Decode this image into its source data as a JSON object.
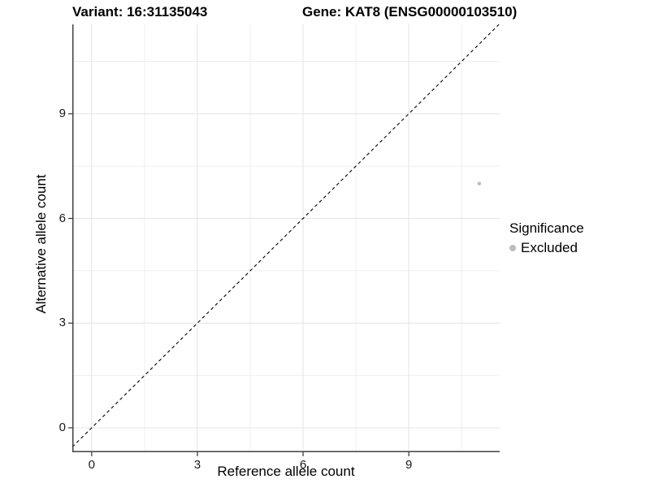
{
  "titles": {
    "left": "Variant: 16:31135043",
    "right": "Gene: KAT8 (ENSG00000103510)"
  },
  "chart_data": {
    "type": "scatter",
    "xlabel": "Reference allele count",
    "ylabel": "Alternative allele count",
    "xlim": [
      -0.55,
      11.58
    ],
    "ylim": [
      -0.7,
      11.56
    ],
    "x_major_ticks": [
      0,
      3,
      6,
      9
    ],
    "y_major_ticks": [
      0,
      3,
      6,
      9
    ],
    "x_minor_ticks": [
      1.5,
      4.5,
      7.5,
      10.5
    ],
    "y_minor_ticks": [
      1.5,
      4.5,
      7.5,
      10.5
    ],
    "grid": "major+minor",
    "reference_line": {
      "type": "abline",
      "slope": 1,
      "intercept": 0,
      "style": "dashed",
      "color": "#000000"
    },
    "points": [
      {
        "x": 11,
        "y": 7,
        "significance": "Excluded",
        "color": "#bdbdbd",
        "radius_px": 2.3
      }
    ],
    "legend": {
      "title": "Significance",
      "position": "right",
      "entries": [
        {
          "label": "Excluded",
          "color": "#bdbdbd",
          "marker": "circle"
        }
      ]
    }
  },
  "colors": {
    "grid_major": "#e4e4e4",
    "grid_minor": "#efefef",
    "axis_line": "#404040",
    "tick_mark": "#333333",
    "point_excluded": "#bdbdbd",
    "text": "#000000"
  }
}
